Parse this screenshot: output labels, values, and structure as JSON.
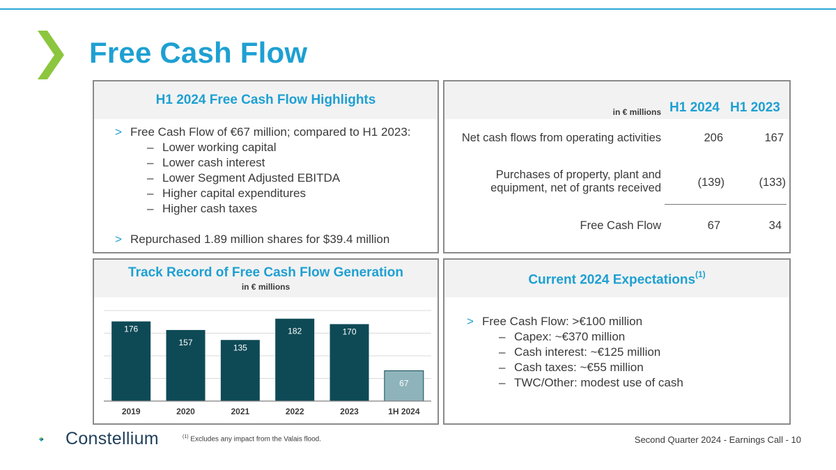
{
  "slide": {
    "title": "Free Cash Flow",
    "footer_left": "Second Quarter 2024 -  Earnings Call",
    "page_number": "10",
    "footnote_marker": "(1)",
    "footnote": " Excludes any impact from the Valais flood.",
    "logo_text": "Constellium"
  },
  "colors": {
    "accent": "#1ea0d2",
    "chevron": "#8cc63f",
    "bar_dark": "#0e4a56",
    "bar_light": "#8fb3bb"
  },
  "highlights": {
    "title": "H1 2024 Free Cash Flow Highlights",
    "bullet_1": "Free Cash Flow of €67 million; compared to H1 2023:",
    "subs": [
      "Lower working capital",
      "Lower cash interest",
      "Lower Segment Adjusted EBITDA",
      "Higher capital expenditures",
      "Higher cash taxes"
    ],
    "bullet_2": "Repurchased 1.89 million shares for $39.4 million"
  },
  "table": {
    "unit": "in € millions",
    "col_1": "H1 2024",
    "col_2": "H1 2023",
    "rows": [
      {
        "label": "Net cash flows from operating activities",
        "v1": "206",
        "v2": "167"
      },
      {
        "label_line1": "Purchases of property, plant and",
        "label_line2": "equipment, net of grants received",
        "v1": "(139)",
        "v2": "(133)"
      },
      {
        "label": "Free Cash Flow",
        "v1": "67",
        "v2": "34"
      }
    ]
  },
  "track_record": {
    "title": "Track Record of Free Cash Flow Generation",
    "subtitle": "in € millions"
  },
  "expectations": {
    "title": "Current 2024 Expectations",
    "title_sup": "(1)",
    "bullet": "Free Cash Flow: >€100 million",
    "subs": [
      "Capex: ~€370 million",
      "Cash interest: ~€125 million",
      "Cash taxes: ~€55 million",
      "TWC/Other: modest use of cash"
    ]
  },
  "chart_data": {
    "type": "bar",
    "title": "Track Record of Free Cash Flow Generation",
    "ylabel": "in € millions",
    "xlabel": "",
    "categories": [
      "2019",
      "2020",
      "2021",
      "2022",
      "2023",
      "1H 2024"
    ],
    "values": [
      176,
      157,
      135,
      182,
      170,
      67
    ],
    "highlight_last": true,
    "ylim": [
      0,
      200
    ],
    "grid": true
  }
}
